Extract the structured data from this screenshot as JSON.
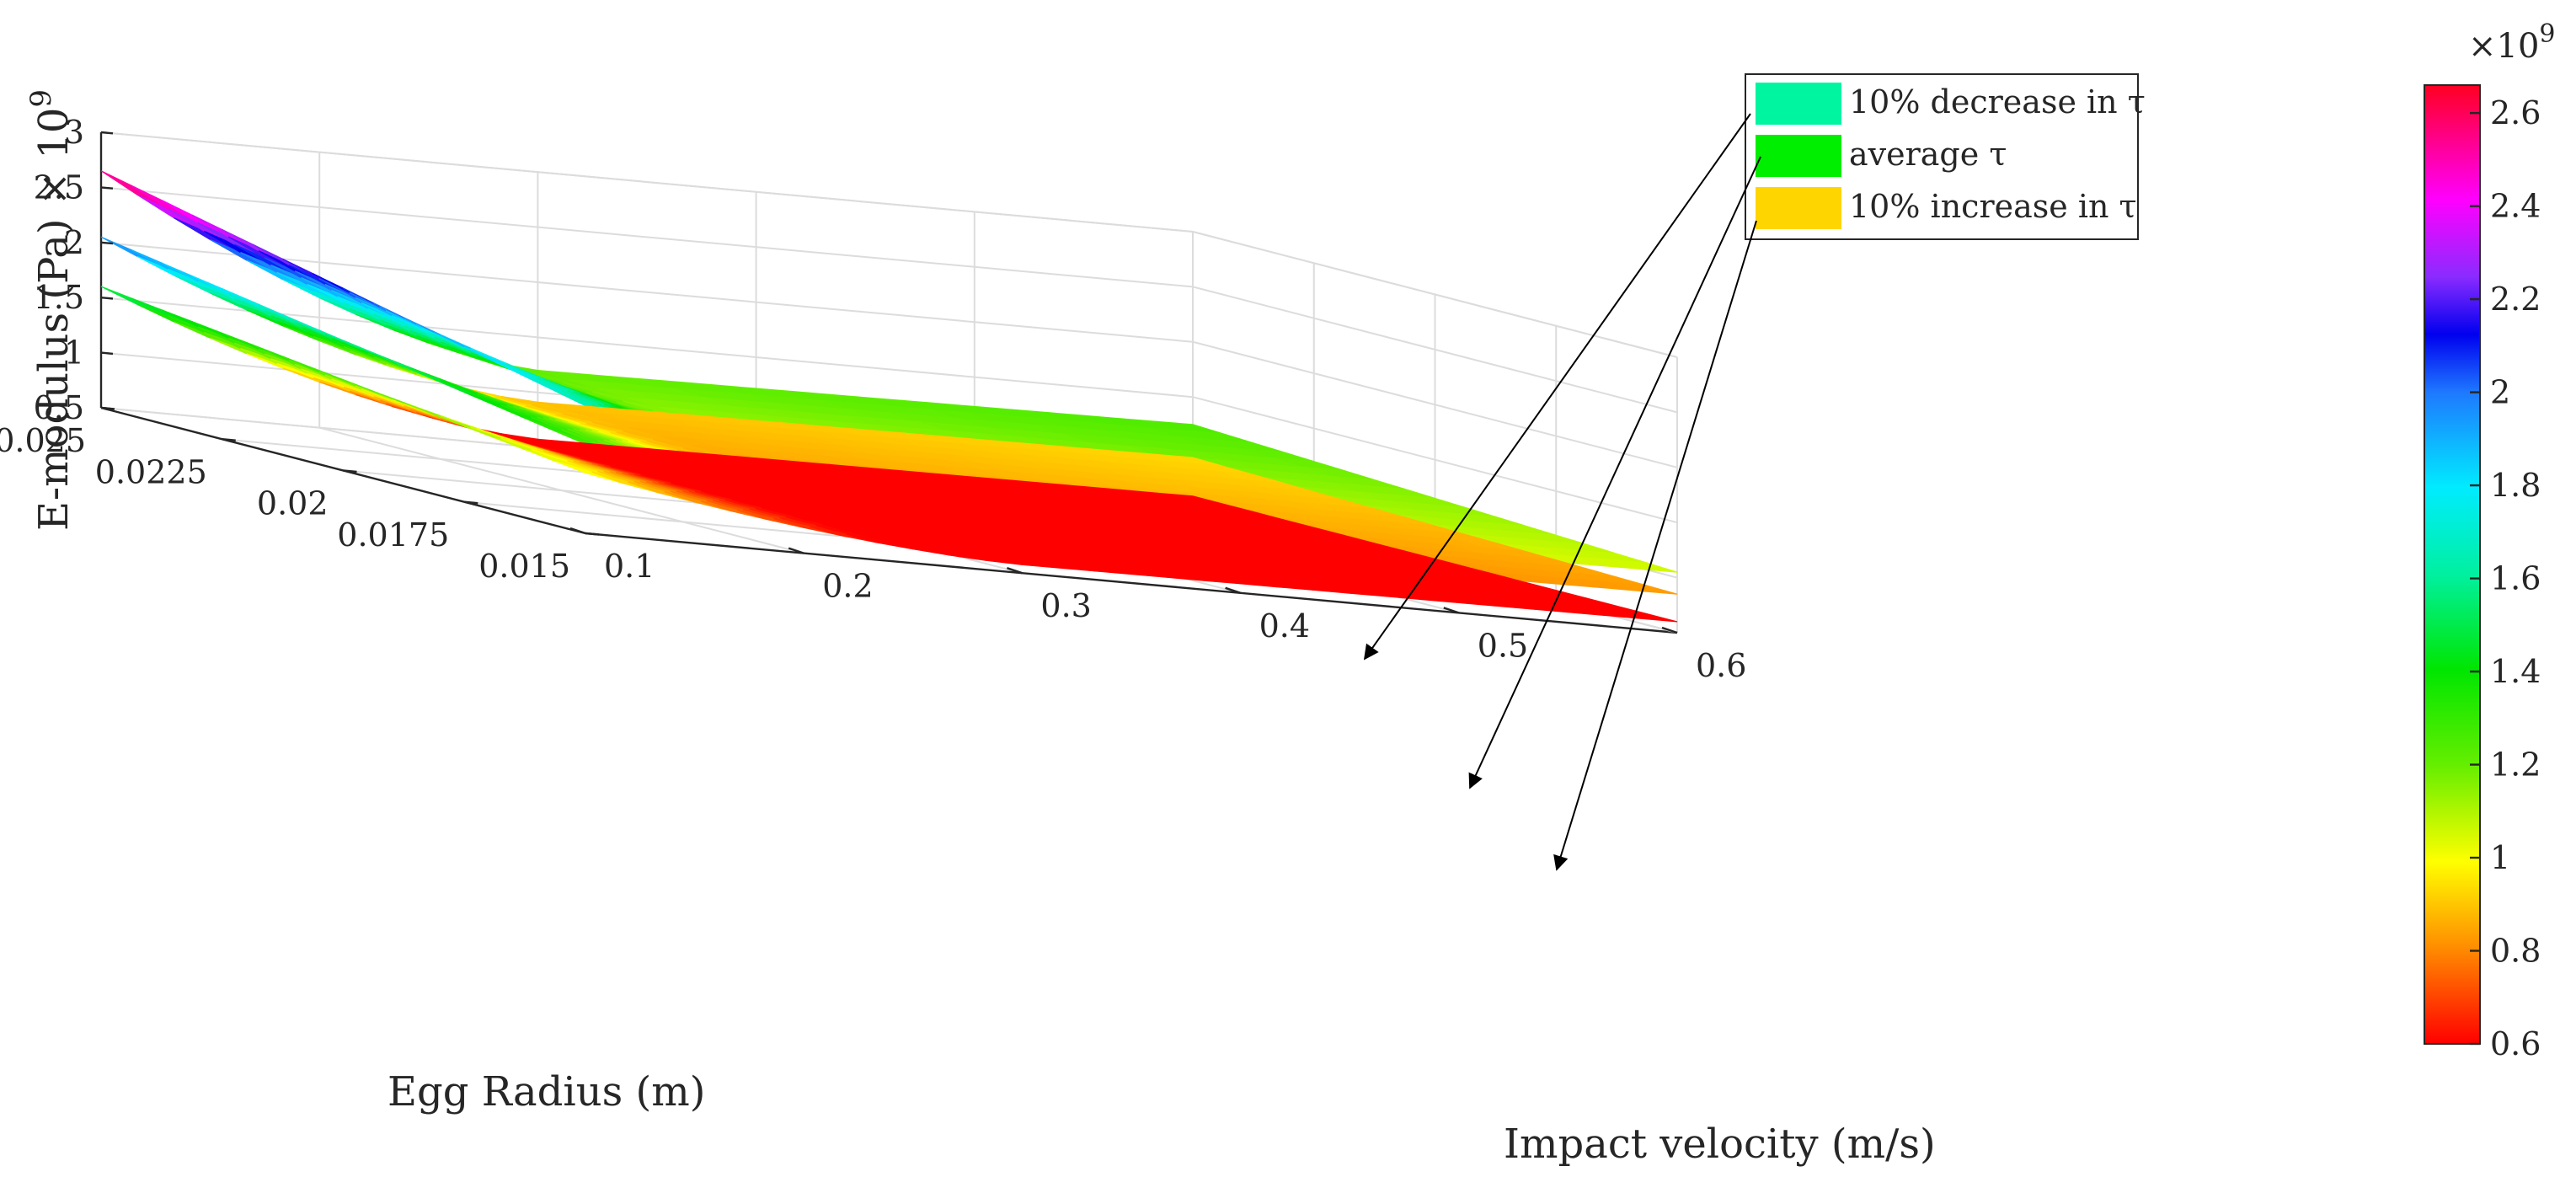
{
  "chart_data": {
    "type": "surface3d",
    "title": "",
    "xlabel": "Impact velocity (m/s)",
    "ylabel": "Egg Radius (m)",
    "zlabel": "E-modulus (Pa) × 10",
    "zlabel_exponent": "9",
    "x_ticks": [
      "0.1",
      "0.2",
      "0.3",
      "0.4",
      "0.5",
      "0.6"
    ],
    "x_tick_values": [
      0.1,
      0.2,
      0.3,
      0.4,
      0.5,
      0.6
    ],
    "y_ticks": [
      "0.025",
      "0.0225",
      "0.02",
      "0.0175",
      "0.015"
    ],
    "y_tick_values": [
      0.025,
      0.0225,
      0.02,
      0.0175,
      0.015
    ],
    "z_ticks": [
      "0.5",
      "1",
      "1.5",
      "2",
      "2.5",
      "3"
    ],
    "z_tick_values": [
      0.5,
      1,
      1.5,
      2,
      2.5,
      3
    ],
    "xlim": [
      0.1,
      0.6
    ],
    "ylim": [
      0.015,
      0.025
    ],
    "zlim": [
      0.5,
      3
    ],
    "colorbar": {
      "exponent_base": "×10",
      "exponent": "9",
      "ticks": [
        "0.6",
        "0.8",
        "1",
        "1.2",
        "1.4",
        "1.6",
        "1.8",
        "2",
        "2.2",
        "2.4",
        "2.6"
      ],
      "tick_values": [
        0.6,
        0.8,
        1.0,
        1.2,
        1.4,
        1.6,
        1.8,
        2.0,
        2.2,
        2.4,
        2.6
      ],
      "range": [
        0.6,
        2.66
      ]
    },
    "series": [
      {
        "name": "10% decrease in τ",
        "legend_color": "#00f5a0",
        "e_at_min_velocity_max_radius": 2.65,
        "e_at_max_velocity_max_radius": 1.25,
        "e_min_near_velocity": 0.3,
        "e_at_max_velocity_min_radius": 1.05
      },
      {
        "name": "average τ",
        "legend_color": "#00ee00",
        "e_at_min_velocity_max_radius": 2.05,
        "e_at_max_velocity_max_radius": 0.95,
        "e_min_near_velocity": 0.3,
        "e_at_max_velocity_min_radius": 0.85
      },
      {
        "name": "10% increase in τ",
        "legend_color": "#ffd500",
        "e_at_min_velocity_max_radius": 1.6,
        "e_at_max_velocity_max_radius": 0.6,
        "e_min_near_velocity": 0.3,
        "e_at_max_velocity_min_radius": 0.6
      }
    ]
  }
}
